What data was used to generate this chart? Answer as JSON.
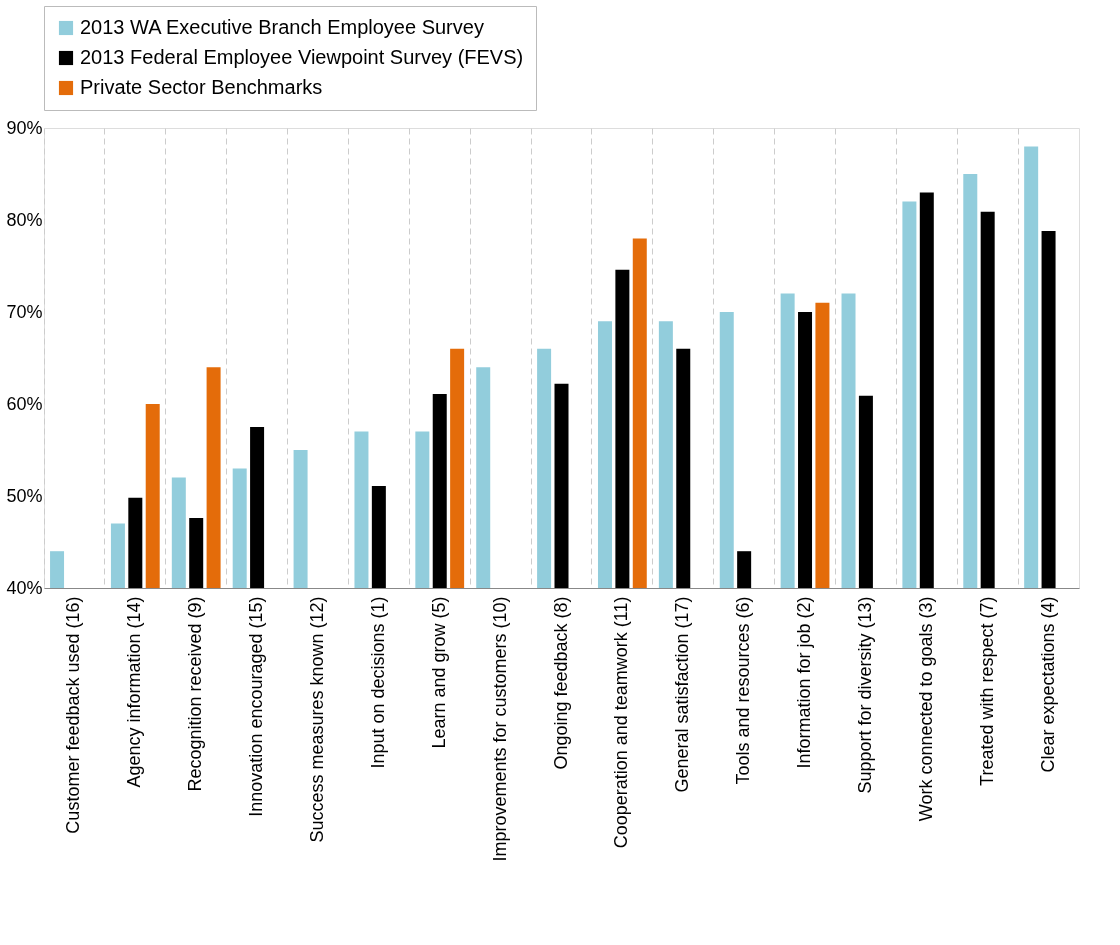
{
  "chart_data": {
    "type": "bar",
    "categories": [
      "Customer feedback used (16)",
      "Agency information (14)",
      "Recognition received (9)",
      "Innovation encouraged (15)",
      "Success measures known (12)",
      "Input on decisions (1)",
      "Learn and grow (5)",
      "Improvements for customers (10)",
      "Ongoing feedback (8)",
      "Cooperation and teamwork (11)",
      "General satisfaction (17)",
      "Tools and resources (6)",
      "Information for job (2)",
      "Support for diversity (13)",
      "Work connected to goals (3)",
      "Treated with respect (7)",
      "Clear expectations (4)"
    ],
    "series": [
      {
        "name": "2013 WA Executive Branch Employee Survey",
        "color": "#92cddc",
        "values": [
          44,
          47,
          52,
          53,
          55,
          57,
          57,
          64,
          66,
          69,
          69,
          70,
          72,
          72,
          82,
          85,
          88
        ]
      },
      {
        "name": "2013 Federal Employee Viewpoint Survey (FEVS)",
        "color": "#000000",
        "values": [
          null,
          49.8,
          47.6,
          57.5,
          null,
          51.1,
          61.1,
          null,
          62.2,
          74.6,
          66,
          44,
          70,
          60.9,
          83,
          80.9,
          78.8
        ]
      },
      {
        "name": "Private Sector Benchmarks",
        "color": "#e46c0a",
        "values": [
          null,
          60,
          64,
          null,
          null,
          null,
          66,
          null,
          null,
          78,
          null,
          null,
          71,
          null,
          null,
          null,
          null
        ]
      }
    ],
    "ylim": [
      40,
      90
    ],
    "yticks": [
      {
        "value": 40,
        "label": "40%"
      },
      {
        "value": 50,
        "label": "50%"
      },
      {
        "value": 60,
        "label": "60%"
      },
      {
        "value": 70,
        "label": "70%"
      },
      {
        "value": 80,
        "label": "80%"
      },
      {
        "value": 90,
        "label": "90%"
      }
    ],
    "grid": "x",
    "legend": "top"
  }
}
